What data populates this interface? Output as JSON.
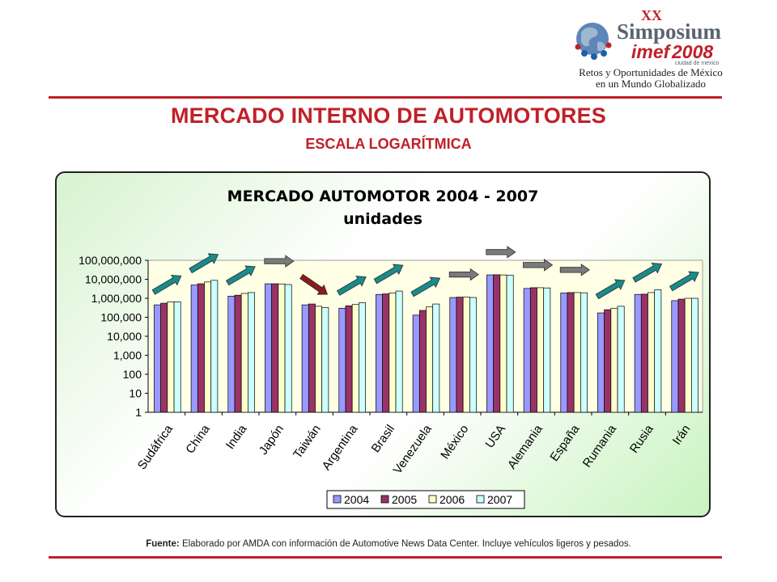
{
  "slide": {
    "title": "MERCADO INTERNO DE AUTOMOTORES",
    "subtitle": "ESCALA LOGARÍTMICA",
    "source_label": "Fuente:",
    "source_text": "Elaborado por AMDA con información de Automotive News Data Center. Incluye vehículos ligeros y pesados."
  },
  "logo": {
    "roman": "XX",
    "word": "Simposium",
    "brand": "imef",
    "year": "2008",
    "city": "ciudad de méxico",
    "line1": "Retos y Oportunidades de México",
    "line2": "en un Mundo Globalizado",
    "colors": {
      "red": "#c0202a",
      "blue": "#1f5fa8",
      "gray": "#6d7a86"
    }
  },
  "chart_data": {
    "type": "bar",
    "title": "MERCADO AUTOMOTOR 2004 - 2007",
    "subtitle": "unidades",
    "y_scale": "log",
    "ylim": [
      1,
      100000000
    ],
    "y_ticks": [
      "1",
      "10",
      "100",
      "1,000",
      "10,000",
      "100,000",
      "1,000,000",
      "10,000,000",
      "100,000,000"
    ],
    "categories": [
      "Sudáfrica",
      "China",
      "India",
      "Japón",
      "Taiwán",
      "Argentina",
      "Brasil",
      "Venezuela",
      "México",
      "USA",
      "Alemania",
      "España",
      "Rumania",
      "Rusia",
      "Irán"
    ],
    "series": [
      {
        "name": "2004",
        "color": "#9999ff",
        "values": [
          450000,
          5000000,
          1300000,
          5800000,
          450000,
          300000,
          1600000,
          130000,
          1100000,
          17000000,
          3300000,
          1900000,
          170000,
          1600000,
          750000
        ]
      },
      {
        "name": "2005",
        "color": "#993366",
        "values": [
          550000,
          5800000,
          1450000,
          5800000,
          500000,
          400000,
          1700000,
          230000,
          1150000,
          17300000,
          3600000,
          2000000,
          250000,
          1650000,
          900000
        ]
      },
      {
        "name": "2006",
        "color": "#ffffcc",
        "values": [
          650000,
          7200000,
          1800000,
          5700000,
          380000,
          470000,
          1900000,
          350000,
          1150000,
          16900000,
          3600000,
          2000000,
          300000,
          2000000,
          1000000
        ]
      },
      {
        "name": "2007",
        "color": "#ccffff",
        "values": [
          650000,
          8800000,
          2000000,
          5300000,
          330000,
          580000,
          2400000,
          500000,
          1100000,
          16500000,
          3500000,
          1950000,
          380000,
          2800000,
          1000000
        ]
      }
    ],
    "trend_arrows": [
      {
        "category": "Sudáfrica",
        "trend": "up",
        "color": "#1a8a8a"
      },
      {
        "category": "China",
        "trend": "up",
        "color": "#1a8a8a"
      },
      {
        "category": "India",
        "trend": "up",
        "color": "#1a8a8a"
      },
      {
        "category": "Japón",
        "trend": "flat",
        "color": "#7a7a7a"
      },
      {
        "category": "Taiwán",
        "trend": "down",
        "color": "#8b1a1a"
      },
      {
        "category": "Argentina",
        "trend": "up",
        "color": "#1a8a8a"
      },
      {
        "category": "Brasil",
        "trend": "up",
        "color": "#1a8a8a"
      },
      {
        "category": "Venezuela",
        "trend": "up",
        "color": "#1a8a8a"
      },
      {
        "category": "México",
        "trend": "flat",
        "color": "#7a7a7a"
      },
      {
        "category": "USA",
        "trend": "flat",
        "color": "#7a7a7a"
      },
      {
        "category": "Alemania",
        "trend": "flat",
        "color": "#7a7a7a"
      },
      {
        "category": "España",
        "trend": "flat",
        "color": "#7a7a7a"
      },
      {
        "category": "Rumania",
        "trend": "up",
        "color": "#1a8a8a"
      },
      {
        "category": "Rusia",
        "trend": "up",
        "color": "#1a8a8a"
      },
      {
        "category": "Irán",
        "trend": "up",
        "color": "#1a8a8a"
      }
    ],
    "legend_position": "bottom",
    "plot_background": "#ffffe6",
    "grid": false
  }
}
